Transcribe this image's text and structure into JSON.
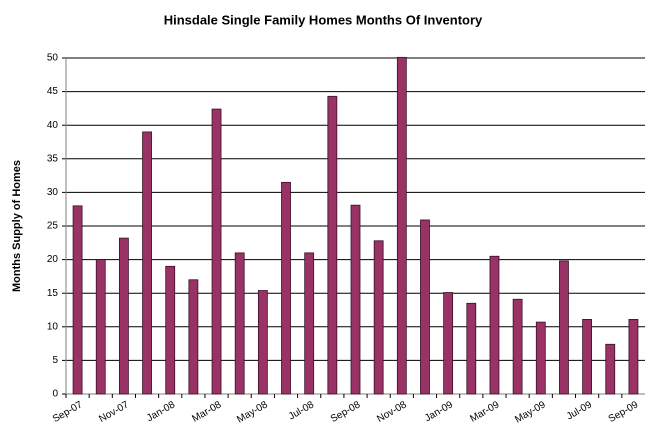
{
  "chart_data": {
    "type": "bar",
    "title": "Hinsdale Single Family Homes Months Of Inventory",
    "y_label": "Months Supply of Homes",
    "categories": [
      "Sep-07",
      null,
      "Nov-07",
      null,
      "Jan-08",
      null,
      "Mar-08",
      null,
      "May-08",
      null,
      "Jul-08",
      null,
      "Sep-08",
      null,
      "Nov-08",
      null,
      "Jan-09",
      null,
      "Mar-09",
      null,
      "May-09",
      null,
      "Jul-09",
      null,
      "Sep-09"
    ],
    "values": [
      28,
      20,
      23.2,
      39,
      19,
      17,
      42.4,
      21,
      15.4,
      31.5,
      21,
      44.3,
      28.1,
      22.8,
      50.1,
      25.9,
      15.1,
      13.5,
      20.5,
      14.1,
      10.7,
      19.8,
      11.1,
      7.4,
      11.1
    ],
    "color": "#993366",
    "ylim": [
      0,
      50
    ],
    "yticks": [
      0,
      5,
      10,
      15,
      20,
      25,
      30,
      35,
      40,
      45,
      50
    ],
    "grid": true
  }
}
